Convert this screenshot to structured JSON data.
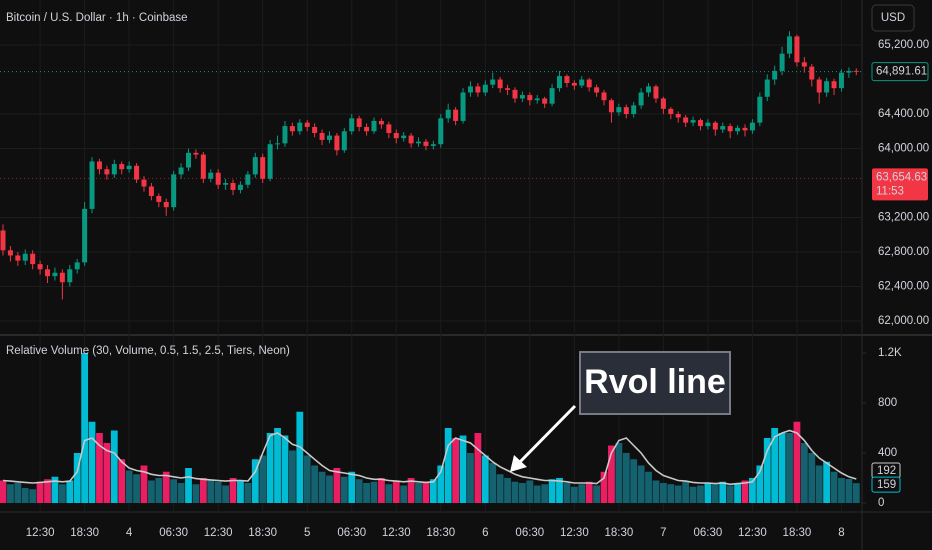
{
  "chart_data": [
    {
      "type": "candlestick",
      "title": "Bitcoin / U.S. Dollar · 1h · Coinbase",
      "currency": "USD",
      "categories": [
        null,
        null,
        null,
        null,
        null,
        "12:30",
        null,
        null,
        null,
        null,
        null,
        "18:30",
        null,
        null,
        null,
        null,
        null,
        "4",
        null,
        null,
        null,
        null,
        null,
        "06:30",
        null,
        null,
        null,
        null,
        null,
        "12:30",
        null,
        null,
        null,
        null,
        null,
        "18:30",
        null,
        null,
        null,
        null,
        null,
        "5",
        null,
        null,
        null,
        null,
        null,
        "06:30",
        null,
        null,
        null,
        null,
        null,
        "12:30",
        null,
        null,
        null,
        null,
        null,
        "18:30",
        null,
        null,
        null,
        null,
        null,
        "6",
        null,
        null,
        null,
        null,
        null,
        "06:30",
        null,
        null,
        null,
        null,
        null,
        "12:30",
        null,
        null,
        null,
        null,
        null,
        "18:30",
        null,
        null,
        null,
        null,
        null,
        "7",
        null,
        null,
        null,
        null,
        null,
        "06:30",
        null,
        null,
        null,
        null,
        null,
        "12:30",
        null,
        null,
        null,
        null,
        null,
        "18:30",
        null,
        null,
        null,
        null,
        null,
        "8",
        null,
        null
      ],
      "open": [
        63050,
        62820,
        62760,
        62700,
        62780,
        62660,
        62600,
        62520,
        62560,
        62450,
        62600,
        62680,
        63300,
        63850,
        63760,
        63700,
        63820,
        63760,
        63800,
        63640,
        63560,
        63450,
        63380,
        63320,
        63700,
        63780,
        63950,
        63930,
        63650,
        63720,
        63580,
        63600,
        63520,
        63580,
        63700,
        63900,
        63650,
        64050,
        64060,
        64260,
        64200,
        64300,
        64250,
        64180,
        64100,
        64150,
        63980,
        64200,
        64350,
        64250,
        64200,
        64320,
        64280,
        64180,
        64120,
        64150,
        64060,
        64080,
        64030,
        64050,
        64350,
        64450,
        64320,
        64650,
        64720,
        64650,
        64740,
        64800,
        64700,
        64680,
        64580,
        64620,
        64560,
        64580,
        64520,
        64700,
        64840,
        64760,
        64730,
        64800,
        64710,
        64650,
        64560,
        64420,
        64480,
        64400,
        64500,
        64650,
        64720,
        64580,
        64460,
        64400,
        64360,
        64300,
        64330,
        64260,
        64300,
        64220,
        64260,
        64200,
        64240,
        64210,
        64300,
        64600,
        64800,
        64900,
        65100,
        65300,
        65000,
        64950,
        64800,
        64650,
        64780,
        64700,
        64880,
        64900
      ],
      "high": [
        63120,
        62870,
        62800,
        62830,
        62820,
        62700,
        62650,
        62620,
        62600,
        62650,
        62720,
        63380,
        63900,
        63880,
        63800,
        63870,
        63850,
        63850,
        63830,
        63680,
        63600,
        63480,
        63420,
        63740,
        63830,
        64000,
        63990,
        63960,
        63760,
        63760,
        63650,
        63640,
        63620,
        63740,
        63950,
        63940,
        64100,
        64150,
        64320,
        64300,
        64340,
        64330,
        64290,
        64220,
        64200,
        64180,
        64240,
        64400,
        64380,
        64290,
        64360,
        64350,
        64310,
        64220,
        64190,
        64180,
        64130,
        64110,
        64090,
        64400,
        64520,
        64480,
        64700,
        64780,
        64760,
        64790,
        64880,
        64830,
        64740,
        64710,
        64660,
        64650,
        64620,
        64600,
        64750,
        64900,
        64860,
        64790,
        64840,
        64820,
        64740,
        64680,
        64580,
        64520,
        64510,
        64540,
        64700,
        64760,
        64740,
        64600,
        64480,
        64430,
        64390,
        64370,
        64350,
        64340,
        64320,
        64300,
        64290,
        64270,
        64280,
        64340,
        64650,
        64860,
        64960,
        65180,
        65360,
        65320,
        65060,
        64980,
        64830,
        64820,
        64810,
        64920,
        64940,
        64930
      ],
      "low": [
        62760,
        62690,
        62640,
        62650,
        62600,
        62540,
        62440,
        62470,
        62250,
        62400,
        62550,
        62640,
        63250,
        63700,
        63640,
        63660,
        63700,
        63720,
        63600,
        63500,
        63400,
        63320,
        63220,
        63280,
        63650,
        63740,
        63880,
        63600,
        63610,
        63530,
        63520,
        63460,
        63480,
        63540,
        63660,
        63600,
        63620,
        63990,
        64020,
        64150,
        64160,
        64200,
        64130,
        64040,
        64060,
        63920,
        63950,
        64160,
        64200,
        64150,
        64170,
        64230,
        64120,
        64060,
        64080,
        64010,
        64020,
        63980,
        63990,
        64010,
        64300,
        64270,
        64290,
        64600,
        64600,
        64610,
        64700,
        64650,
        64620,
        64530,
        64540,
        64500,
        64520,
        64470,
        64490,
        64660,
        64710,
        64680,
        64700,
        64660,
        64600,
        64500,
        64300,
        64380,
        64350,
        64360,
        64460,
        64600,
        64530,
        64400,
        64340,
        64300,
        64250,
        64260,
        64210,
        64220,
        64150,
        64180,
        64120,
        64160,
        64140,
        64170,
        64260,
        64550,
        64740,
        64850,
        65050,
        64950,
        64880,
        64720,
        64520,
        64600,
        64620,
        64660,
        64820,
        64850
      ],
      "close": [
        62820,
        62760,
        62700,
        62780,
        62660,
        62600,
        62520,
        62560,
        62450,
        62600,
        62680,
        63300,
        63850,
        63760,
        63700,
        63820,
        63760,
        63800,
        63640,
        63560,
        63450,
        63380,
        63320,
        63700,
        63780,
        63950,
        63930,
        63650,
        63720,
        63580,
        63600,
        63520,
        63580,
        63700,
        63900,
        63650,
        64050,
        64060,
        64260,
        64200,
        64300,
        64250,
        64180,
        64100,
        64150,
        63980,
        64200,
        64350,
        64250,
        64200,
        64320,
        64280,
        64180,
        64120,
        64150,
        64060,
        64080,
        64030,
        64050,
        64350,
        64450,
        64320,
        64650,
        64720,
        64650,
        64740,
        64800,
        64700,
        64680,
        64580,
        64620,
        64560,
        64580,
        64520,
        64700,
        64840,
        64760,
        64730,
        64800,
        64710,
        64650,
        64560,
        64420,
        64480,
        64400,
        64500,
        64650,
        64720,
        64580,
        64460,
        64400,
        64360,
        64300,
        64330,
        64260,
        64300,
        64220,
        64260,
        64200,
        64240,
        64210,
        64300,
        64600,
        64800,
        64900,
        65100,
        65300,
        65000,
        64950,
        64800,
        64650,
        64780,
        64700,
        64880,
        64900,
        64891.61
      ],
      "ylim": [
        61896,
        65722
      ],
      "yticks": [
        {
          "value": 62000,
          "label": "62,000.00"
        },
        {
          "value": 62400,
          "label": "62,400.00"
        },
        {
          "value": 62800,
          "label": "62,800.00"
        },
        {
          "value": 63200,
          "label": "63,200.00"
        },
        {
          "value": 64000,
          "label": "64,000.00"
        },
        {
          "value": 64400,
          "label": "64,400.00"
        },
        {
          "value": 65200,
          "label": "65,200.00"
        }
      ],
      "up_color": "#089981",
      "down_color": "#f23645",
      "grid": true,
      "last_price": {
        "value": 64891.61,
        "label": "64,891.61"
      },
      "price_line": {
        "value": 63654.63,
        "label": "63,654.63"
      },
      "countdown": "11:53"
    },
    {
      "type": "volume",
      "title": "Relative Volume (30, Volume, 0.5, 1.5, 2.5, Tiers, Neon)",
      "values": [
        180,
        150,
        160,
        120,
        110,
        170,
        190,
        210,
        150,
        180,
        400,
        1200,
        650,
        560,
        480,
        580,
        350,
        260,
        230,
        300,
        180,
        200,
        250,
        190,
        160,
        280,
        150,
        200,
        180,
        170,
        140,
        200,
        180,
        160,
        350,
        380,
        560,
        600,
        540,
        420,
        730,
        380,
        300,
        250,
        220,
        280,
        210,
        250,
        190,
        160,
        170,
        200,
        150,
        180,
        140,
        200,
        160,
        170,
        190,
        300,
        600,
        520,
        540,
        400,
        560,
        380,
        320,
        230,
        200,
        170,
        160,
        180,
        140,
        150,
        190,
        200,
        160,
        130,
        150,
        170,
        140,
        250,
        460,
        480,
        400,
        350,
        300,
        250,
        180,
        160,
        150,
        140,
        170,
        130,
        140,
        160,
        150,
        170,
        140,
        160,
        180,
        200,
        300,
        520,
        600,
        560,
        560,
        650,
        480,
        400,
        300,
        330,
        250,
        200,
        192,
        159
      ],
      "rvol": [
        180,
        175,
        170,
        165,
        160,
        165,
        170,
        175,
        170,
        175,
        250,
        500,
        520,
        460,
        420,
        400,
        330,
        280,
        260,
        250,
        230,
        220,
        220,
        210,
        200,
        210,
        195,
        190,
        185,
        180,
        175,
        180,
        180,
        175,
        250,
        400,
        540,
        560,
        520,
        470,
        450,
        400,
        350,
        300,
        260,
        250,
        240,
        230,
        220,
        200,
        190,
        190,
        180,
        175,
        170,
        175,
        170,
        165,
        170,
        250,
        460,
        520,
        500,
        480,
        430,
        380,
        330,
        290,
        260,
        230,
        210,
        200,
        190,
        180,
        180,
        175,
        170,
        160,
        160,
        160,
        155,
        200,
        400,
        500,
        520,
        460,
        400,
        320,
        260,
        220,
        200,
        180,
        175,
        165,
        160,
        160,
        155,
        160,
        150,
        155,
        160,
        170,
        250,
        420,
        530,
        560,
        580,
        560,
        500,
        420,
        360,
        320,
        280,
        240,
        210,
        192
      ],
      "ylim": [
        0,
        1304
      ],
      "yticks": [
        0,
        400,
        800,
        {
          "value": 1200,
          "label": "1.2K"
        }
      ],
      "up_color": "#00bcd4",
      "down_color": "#e91e63",
      "low_color": "#146270",
      "line_color": "#c8c8c8",
      "annotation": "Rvol line"
    }
  ]
}
